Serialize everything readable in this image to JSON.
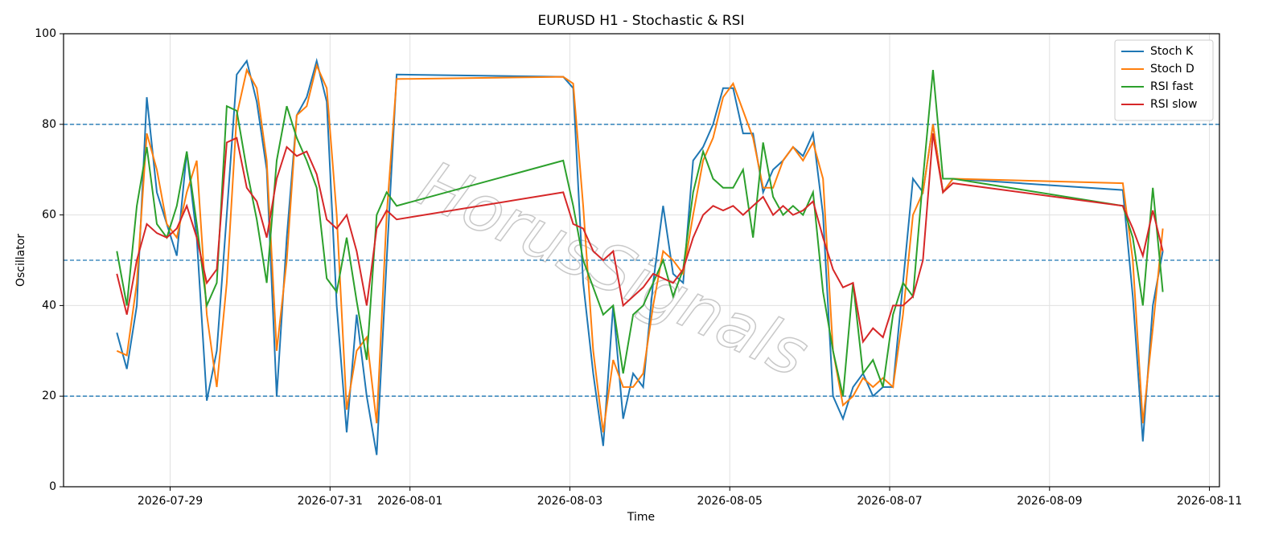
{
  "chart_data": {
    "type": "line",
    "title": "EURUSD H1 - Stochastic & RSI",
    "xlabel": "Time",
    "ylabel": "Oscillator",
    "watermark": "HorusSignals",
    "x": [
      "2026-07-28 08:00",
      "2026-07-28 11:00",
      "2026-07-28 14:00",
      "2026-07-28 17:00",
      "2026-07-28 20:00",
      "2026-07-28 23:00",
      "2026-07-29 02:00",
      "2026-07-29 05:00",
      "2026-07-29 08:00",
      "2026-07-29 11:00",
      "2026-07-29 14:00",
      "2026-07-29 17:00",
      "2026-07-29 20:00",
      "2026-07-29 23:00",
      "2026-07-30 02:00",
      "2026-07-30 05:00",
      "2026-07-30 08:00",
      "2026-07-30 11:00",
      "2026-07-30 14:00",
      "2026-07-30 17:00",
      "2026-07-30 20:00",
      "2026-07-30 23:00",
      "2026-07-31 02:00",
      "2026-07-31 05:00",
      "2026-07-31 08:00",
      "2026-07-31 11:00",
      "2026-07-31 14:00",
      "2026-07-31 17:00",
      "2026-07-31 20:00",
      "2026-08-02 22:00",
      "2026-08-03 01:00",
      "2026-08-03 04:00",
      "2026-08-03 07:00",
      "2026-08-03 10:00",
      "2026-08-03 13:00",
      "2026-08-03 16:00",
      "2026-08-03 19:00",
      "2026-08-03 22:00",
      "2026-08-04 01:00",
      "2026-08-04 04:00",
      "2026-08-04 07:00",
      "2026-08-04 10:00",
      "2026-08-04 13:00",
      "2026-08-04 16:00",
      "2026-08-04 19:00",
      "2026-08-04 22:00",
      "2026-08-05 01:00",
      "2026-08-05 04:00",
      "2026-08-05 07:00",
      "2026-08-05 10:00",
      "2026-08-05 13:00",
      "2026-08-05 16:00",
      "2026-08-05 19:00",
      "2026-08-05 22:00",
      "2026-08-06 01:00",
      "2026-08-06 04:00",
      "2026-08-06 07:00",
      "2026-08-06 10:00",
      "2026-08-06 13:00",
      "2026-08-06 16:00",
      "2026-08-06 19:00",
      "2026-08-06 22:00",
      "2026-08-07 01:00",
      "2026-08-07 04:00",
      "2026-08-07 07:00",
      "2026-08-07 10:00",
      "2026-08-07 13:00",
      "2026-08-07 16:00",
      "2026-08-07 19:00",
      "2026-08-09 22:00",
      "2026-08-10 01:00",
      "2026-08-10 04:00",
      "2026-08-10 07:00",
      "2026-08-10 10:00"
    ],
    "series": [
      {
        "name": "Stoch K",
        "color": "#1f77b4",
        "values": [
          34,
          26,
          40,
          86,
          65,
          58,
          51,
          74,
          55,
          19,
          30,
          60,
          91,
          94,
          85,
          70,
          20,
          55,
          82,
          86,
          94,
          85,
          40,
          12,
          38,
          20,
          7,
          50,
          91,
          90.5,
          88,
          45,
          25,
          9,
          40,
          15,
          25,
          22,
          45,
          62,
          47,
          45,
          72,
          75,
          80,
          88,
          88,
          78,
          78,
          65,
          70,
          72,
          75,
          73,
          78,
          60,
          20,
          15,
          22,
          25,
          20,
          22,
          22,
          45,
          68,
          65,
          80,
          65,
          68,
          65.5,
          42,
          10,
          40,
          52
        ]
      },
      {
        "name": "Stoch D",
        "color": "#ff7f0e",
        "values": [
          30,
          29,
          45,
          78,
          70,
          58,
          55,
          65,
          72,
          38,
          22,
          45,
          82,
          92,
          88,
          72,
          30,
          50,
          82,
          84,
          93,
          88,
          60,
          17,
          30,
          33,
          14,
          60,
          90,
          90.5,
          89,
          62,
          30,
          12,
          28,
          22,
          22,
          25,
          40,
          52,
          50,
          47,
          60,
          72,
          77,
          86,
          89,
          83,
          77,
          66,
          66,
          72,
          75,
          72,
          76,
          68,
          30,
          18,
          20,
          24,
          22,
          24,
          22,
          38,
          60,
          65,
          80,
          65,
          68,
          67,
          50,
          14,
          35,
          57
        ]
      },
      {
        "name": "RSI fast",
        "color": "#2ca02c",
        "values": [
          52,
          40,
          62,
          75,
          58,
          55,
          62,
          74,
          58,
          40,
          45,
          84,
          83,
          70,
          59,
          45,
          72,
          84,
          77,
          72,
          66,
          46,
          43,
          55,
          41,
          28,
          60,
          65,
          62,
          72,
          62,
          50,
          44,
          38,
          40,
          25,
          38,
          40,
          45,
          50,
          42,
          48,
          65,
          74,
          68,
          66,
          66,
          70,
          55,
          76,
          64,
          60,
          62,
          60,
          65,
          43,
          30,
          20,
          45,
          25,
          28,
          22,
          38,
          45,
          42,
          68,
          92,
          68,
          68,
          62,
          55,
          40,
          66,
          43
        ]
      },
      {
        "name": "RSI slow",
        "color": "#d62728",
        "values": [
          47,
          38,
          50,
          58,
          56,
          55,
          57,
          62,
          55,
          45,
          48,
          76,
          77,
          66,
          63,
          55,
          68,
          75,
          73,
          74,
          69,
          59,
          57,
          60,
          52,
          40,
          57,
          61,
          59,
          65,
          58,
          57,
          52,
          50,
          52,
          40,
          42,
          44,
          47,
          46,
          45,
          48,
          55,
          60,
          62,
          61,
          62,
          60,
          62,
          64,
          60,
          62,
          60,
          61,
          63,
          55,
          48,
          44,
          45,
          32,
          35,
          33,
          40,
          40,
          42,
          50,
          78,
          65,
          67,
          62,
          57,
          51,
          61,
          52
        ]
      }
    ],
    "xlim": [
      "2026-07-27 16:00",
      "2026-08-11 03:00"
    ],
    "xticks": [
      "2026-07-29",
      "2026-07-31",
      "2026-08-01",
      "2026-08-03",
      "2026-08-05",
      "2026-08-07",
      "2026-08-09",
      "2026-08-11"
    ],
    "ylim": [
      0,
      100
    ],
    "yticks": [
      0,
      20,
      40,
      60,
      80,
      100
    ],
    "hlines": [
      20,
      50,
      80
    ],
    "hline_color": "#1f77b4",
    "grid": true,
    "legend": "upper right"
  }
}
